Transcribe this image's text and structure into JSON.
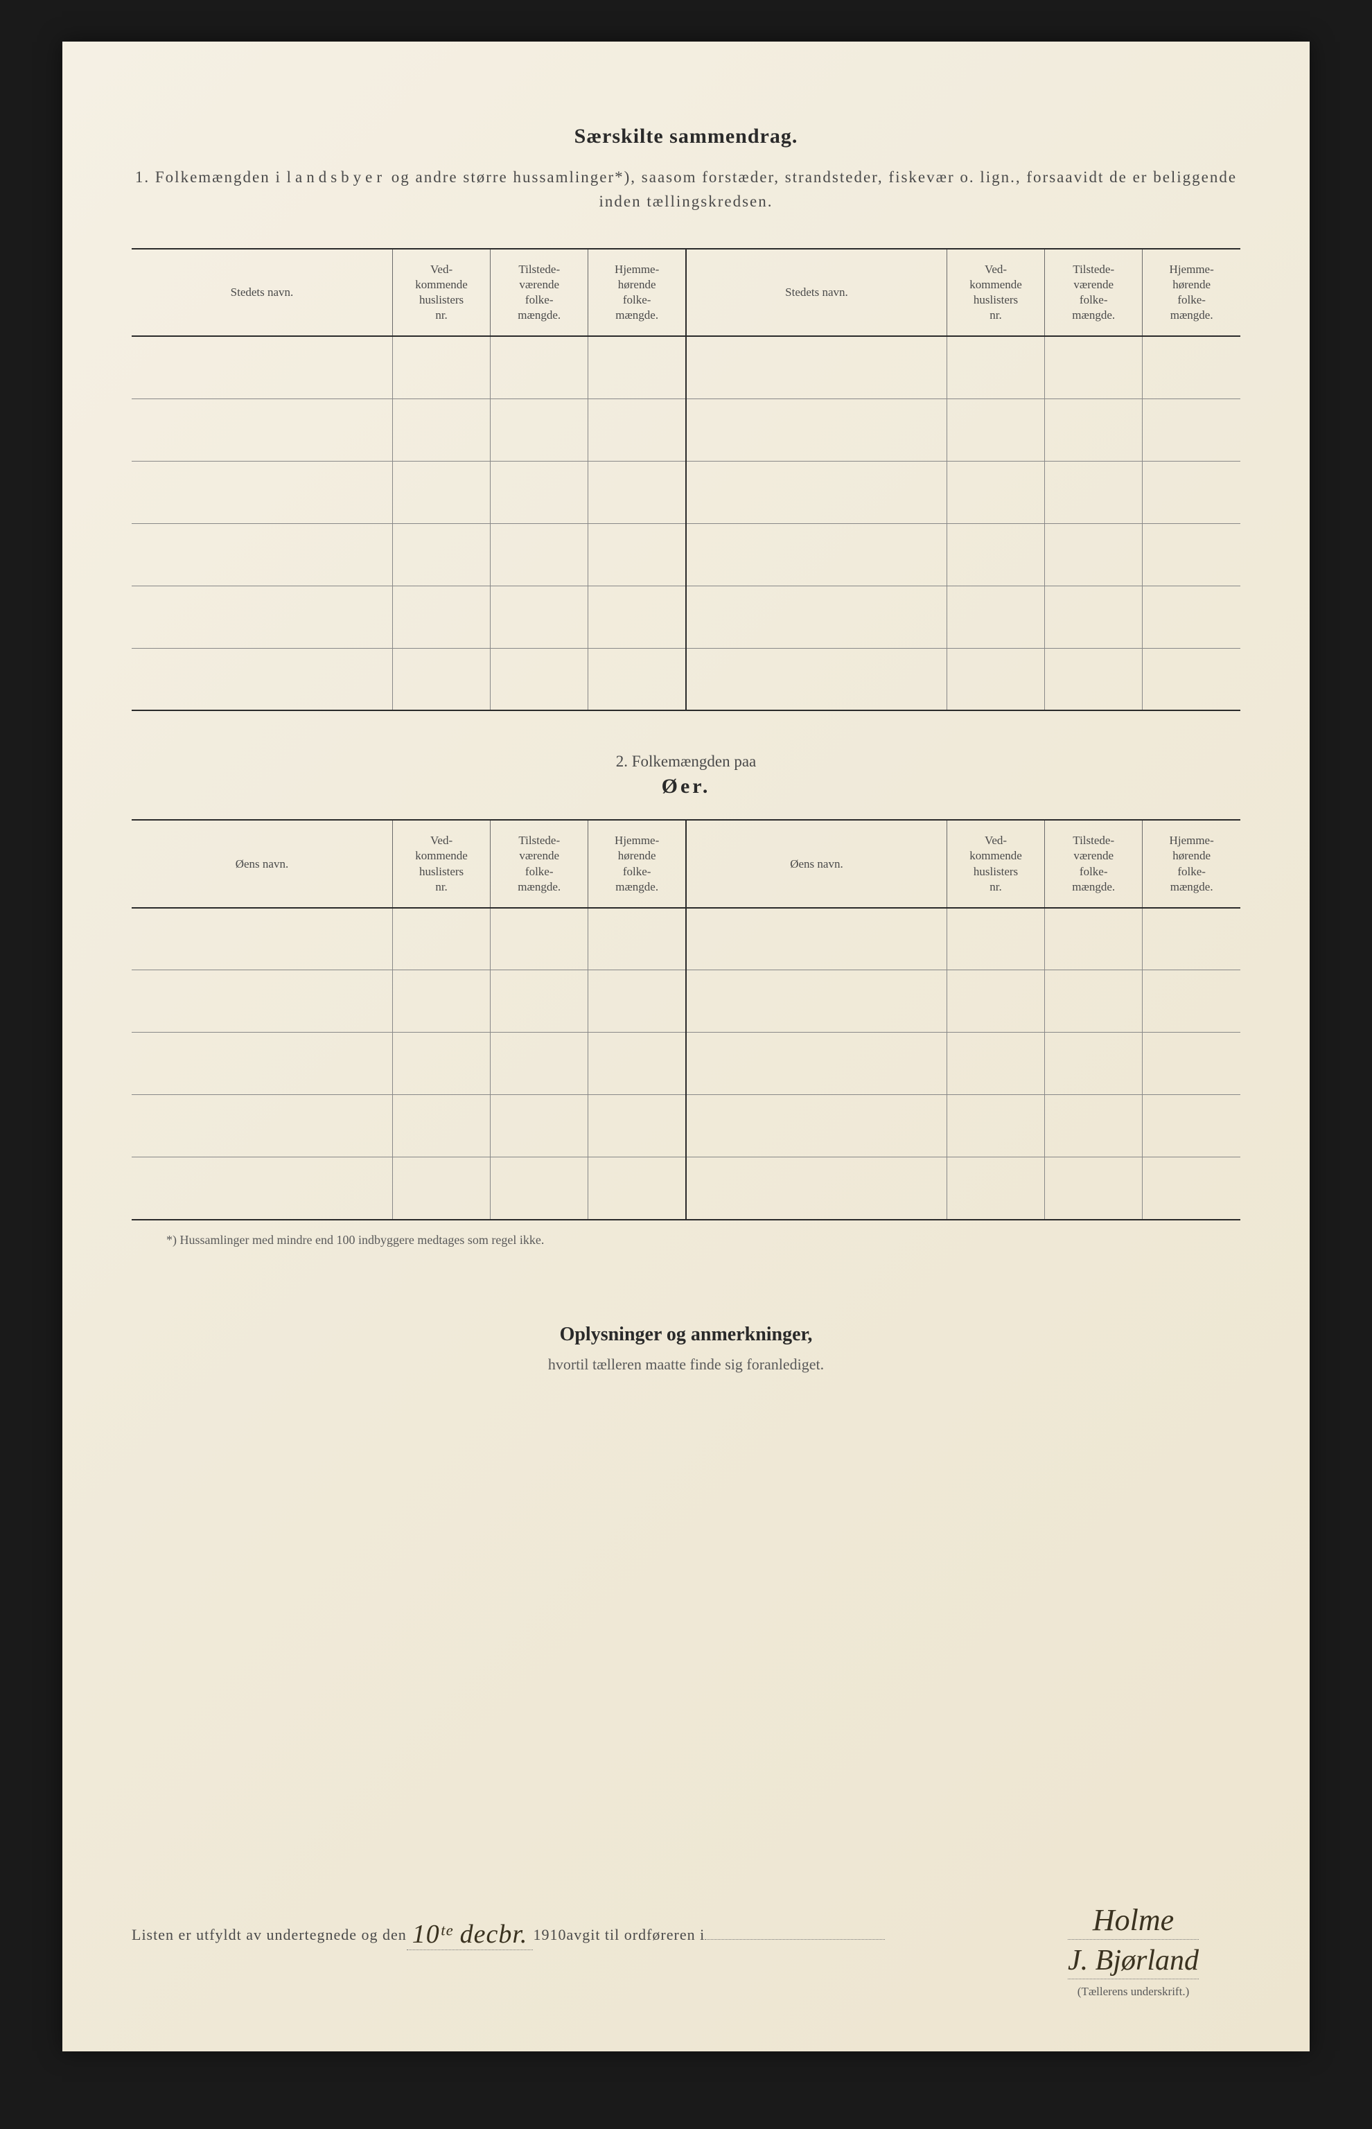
{
  "colors": {
    "page_bg": "#f0ead9",
    "frame_bg": "#1a1a1a",
    "text_heading": "#2a2a2a",
    "text_body": "#4a4a4a",
    "text_light": "#5a5a5a",
    "rule_heavy": "#2a2a2a",
    "rule_light": "#888888",
    "ink_handwriting": "#3a3220"
  },
  "section1": {
    "title": "Særskilte sammendrag.",
    "intro_prefix": "1.   Folkemængden i ",
    "intro_spaced": "landsbyer",
    "intro_suffix": " og andre større hussamlinger*), saasom forstæder, strandsteder, fiskevær o. lign., forsaavidt de er beliggende inden tællingskredsen.",
    "table": {
      "columns_left": [
        "Stedets navn.",
        "Ved-\nkommende\nhuslisters\nnr.",
        "Tilstede-\nværende\nfolke-\nmængde.",
        "Hjemme-\nhørende\nfolke-\nmængde."
      ],
      "columns_right": [
        "Stedets navn.",
        "Ved-\nkommende\nhuslisters\nnr.",
        "Tilstede-\nværende\nfolke-\nmængde.",
        "Hjemme-\nhørende\nfolke-\nmængde."
      ],
      "row_count": 6
    }
  },
  "section2": {
    "header_line1": "2.   Folkemængden paa",
    "header_line2": "Øer.",
    "table": {
      "columns_left": [
        "Øens navn.",
        "Ved-\nkommende\nhuslisters\nnr.",
        "Tilstede-\nværende\nfolke-\nmængde.",
        "Hjemme-\nhørende\nfolke-\nmængde."
      ],
      "columns_right": [
        "Øens navn.",
        "Ved-\nkommende\nhuslisters\nnr.",
        "Tilstede-\nværende\nfolke-\nmængde.",
        "Hjemme-\nhørende\nfolke-\nmængde."
      ],
      "row_count": 5
    },
    "footnote": "*) Hussamlinger med mindre end 100 indbyggere medtages som regel ikke."
  },
  "section3": {
    "title": "Oplysninger og anmerkninger,",
    "subtitle": "hvortil tælleren maatte finde sig foranlediget."
  },
  "signature": {
    "prefix": "Listen er utfyldt av undertegnede og den",
    "date_hand": "10ᵗᵉ decbr.",
    "year": "1910",
    "middle": " avgit til ordføreren i",
    "place_hand": "Holme",
    "name_hand": "J. Bjørland",
    "caption": "(Tællerens underskrift.)"
  }
}
